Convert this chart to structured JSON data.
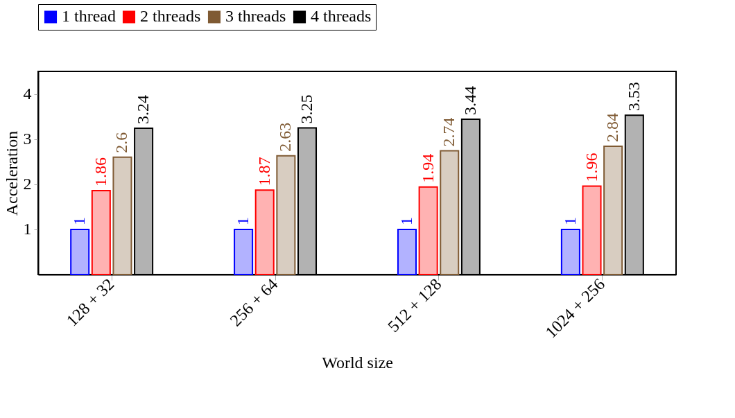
{
  "chart_data": {
    "type": "bar",
    "xlabel": "World size",
    "ylabel": "Acceleration",
    "categories": [
      "128 + 32",
      "256 + 64",
      "512 + 128",
      "1024 + 256"
    ],
    "series": [
      {
        "name": "1 thread",
        "color": "#0000ff",
        "values": [
          1,
          1,
          1,
          1
        ]
      },
      {
        "name": "2 threads",
        "color": "#ff0000",
        "values": [
          1.86,
          1.87,
          1.94,
          1.96
        ]
      },
      {
        "name": "3 threads",
        "color": "#7f5a33",
        "values": [
          2.6,
          2.63,
          2.74,
          2.84
        ]
      },
      {
        "name": "4 threads",
        "color": "#000000",
        "values": [
          3.24,
          3.25,
          3.44,
          3.53
        ]
      }
    ],
    "ylim": [
      0,
      4.5
    ],
    "yticks": [
      1,
      2,
      3,
      4
    ],
    "grid": false,
    "legend": "top",
    "data_labels": true
  }
}
